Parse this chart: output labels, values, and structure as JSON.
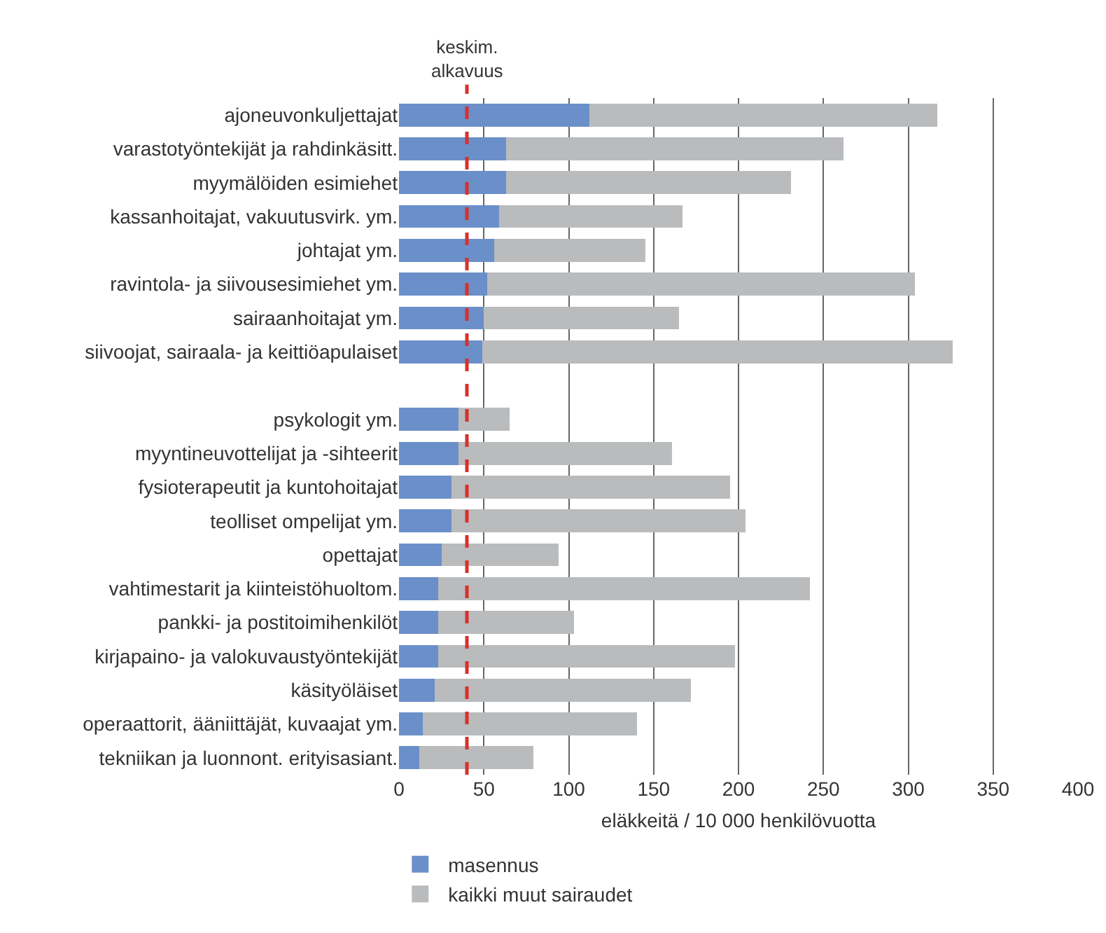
{
  "chart_data": {
    "type": "bar",
    "orientation": "horizontal",
    "stacked": true,
    "xlabel": "eläkkeitä / 10 000 henkilövuotta",
    "categories": [
      "ajoneuvonkuljettajat",
      "varastotyöntekijät ja rahdinkäsitt.",
      "myymälöiden esimiehet",
      "kassanhoitajat, vakuutusvirk. ym.",
      "johtajat ym.",
      "ravintola- ja siivousesimiehet ym.",
      "sairaanhoitajat ym.",
      "siivoojat, sairaala- ja keittiöapulaiset",
      null,
      "psykologit ym.",
      "myyntineuvottelijat ja -sihteerit",
      "fysioterapeutit ja kuntohoitajat",
      "teolliset ompelijat ym.",
      "opettajat",
      "vahtimestarit ja kiinteistöhuoltom.",
      "pankki- ja postitoimihenkilöt",
      "kirjapaino- ja valokuvaustyöntekijät",
      "käsityöläiset",
      "operaattorit, ääniittäjät, kuvaajat ym.",
      "tekniikan ja luonnont. erityisasiant."
    ],
    "series": [
      {
        "name": "masennus",
        "color": "#6b8fc9",
        "values": [
          112,
          63,
          63,
          59,
          56,
          52,
          50,
          49,
          null,
          35,
          35,
          31,
          31,
          25,
          23,
          23,
          23,
          21,
          14,
          12
        ]
      },
      {
        "name": "kaikki muut sairaudet",
        "color": "#b9bbbd",
        "values": [
          205,
          199,
          168,
          108,
          89,
          252,
          115,
          277,
          null,
          30,
          126,
          164,
          173,
          69,
          219,
          80,
          175,
          151,
          126,
          67
        ]
      }
    ],
    "xlim": [
      0,
      400
    ],
    "xticks": [
      0,
      50,
      100,
      150,
      200,
      250,
      300,
      350,
      400
    ],
    "grid": "x",
    "legend": "bottom left",
    "ref_lines": [
      {
        "axis": "x",
        "value": 40,
        "label": "keskim.\nalkavuus",
        "color": "#d9302a",
        "line_style": "dashed"
      }
    ]
  }
}
